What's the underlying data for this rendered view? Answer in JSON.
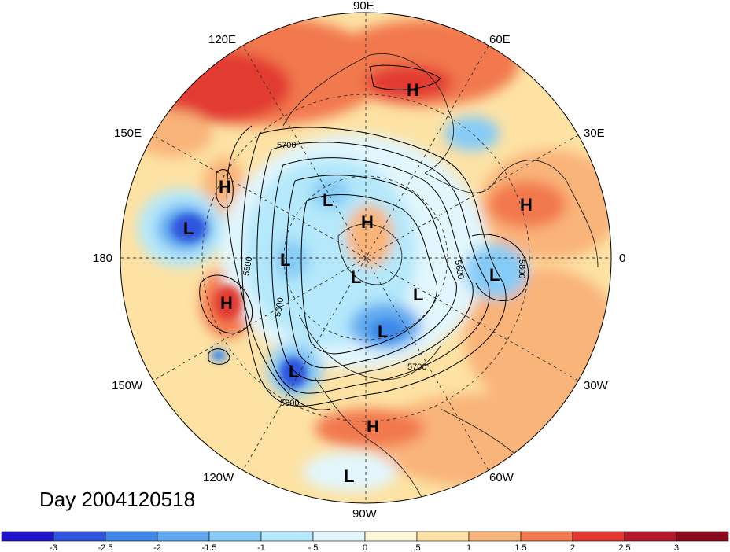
{
  "day_label": "Day 2004120518",
  "longitude_labels": {
    "lon_90e": "90E",
    "lon_60e": "60E",
    "lon_30e": "30E",
    "lon_0": "0",
    "lon_30w": "30W",
    "lon_60w": "60W",
    "lon_90w": "90W",
    "lon_120w": "120W",
    "lon_150w": "150W",
    "lon_180": "180",
    "lon_150e": "150E",
    "lon_120e": "120E"
  },
  "pressure_centers": [
    {
      "label": "H"
    },
    {
      "label": "H"
    },
    {
      "label": "L"
    },
    {
      "label": "L"
    },
    {
      "label": "H"
    },
    {
      "label": "H"
    },
    {
      "label": "L"
    },
    {
      "label": "L"
    },
    {
      "label": "L"
    },
    {
      "label": "L"
    },
    {
      "label": "L"
    },
    {
      "label": "L"
    },
    {
      "label": "H"
    },
    {
      "label": "L"
    },
    {
      "label": "H"
    }
  ],
  "contour_labels": {
    "c_5700_top": "5700",
    "c_5800_left": "5800",
    "c_5600_left": "5600",
    "c_5800_bottom": "5800",
    "c_5700_bottom": "5700",
    "c_5600_right": "5600",
    "c_5800_right": "5800"
  },
  "colorbar": {
    "ticks": [
      "-3",
      "-2.5",
      "-2",
      "-1.5",
      "-1",
      "-.5",
      "0",
      ".5",
      "1",
      "1.5",
      "2",
      "2.5",
      "3"
    ],
    "colors": [
      "#1f14c8",
      "#2f55dc",
      "#3e87e8",
      "#5fa8f0",
      "#86ccf6",
      "#b4e8fa",
      "#e2f6fd",
      "#fff6d8",
      "#fde2a4",
      "#f9b479",
      "#f2784e",
      "#e23a33",
      "#b3192d",
      "#8c0a1e"
    ]
  }
}
